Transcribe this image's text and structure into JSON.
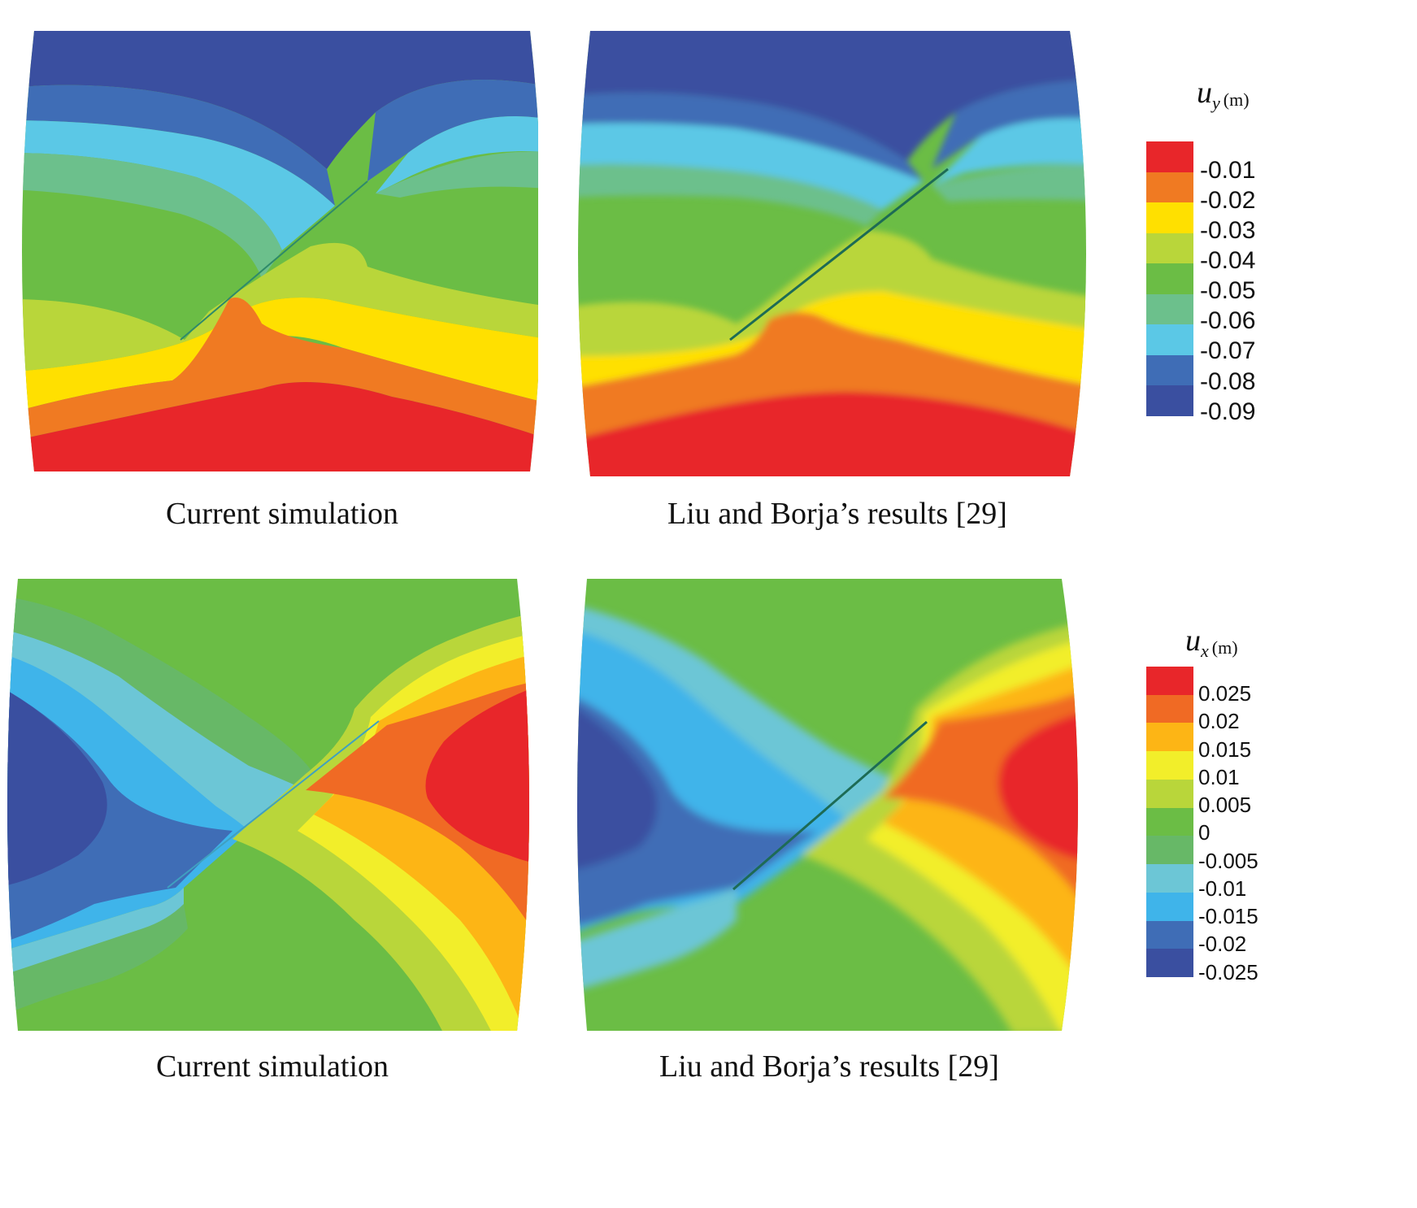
{
  "panels": [
    {
      "id": "uy-current",
      "caption": "Current simulation"
    },
    {
      "id": "uy-liu",
      "caption": "Liu and Borja’s results [29]"
    },
    {
      "id": "ux-current",
      "caption": "Current simulation"
    },
    {
      "id": "ux-liu",
      "caption": "Liu and Borja’s results [29]"
    }
  ],
  "legend_uy": {
    "symbol": "u",
    "subscript": "y",
    "unit": "(m)",
    "labels": [
      "-0.01",
      "-0.02",
      "-0.03",
      "-0.04",
      "-0.05",
      "-0.06",
      "-0.07",
      "-0.08",
      "-0.09"
    ],
    "colors": [
      "#e8262a",
      "#f07a22",
      "#ffe000",
      "#b9d63a",
      "#6bbd45",
      "#6cc08c",
      "#5bc8e6",
      "#3f6db6",
      "#3a4fa0"
    ]
  },
  "legend_ux": {
    "symbol": "u",
    "subscript": "x",
    "unit": "(m)",
    "labels": [
      "0.025",
      "0.02",
      "0.015",
      "0.01",
      "0.005",
      "0",
      "-0.005",
      "-0.01",
      "-0.015",
      "-0.02",
      "-0.025"
    ],
    "colors": [
      "#e8262a",
      "#f06a24",
      "#fdb515",
      "#f2ee2a",
      "#b9d63a",
      "#6bbd45",
      "#67b867",
      "#6cc6d6",
      "#3fb4ea",
      "#3f6db6",
      "#3a4fa0"
    ]
  }
}
